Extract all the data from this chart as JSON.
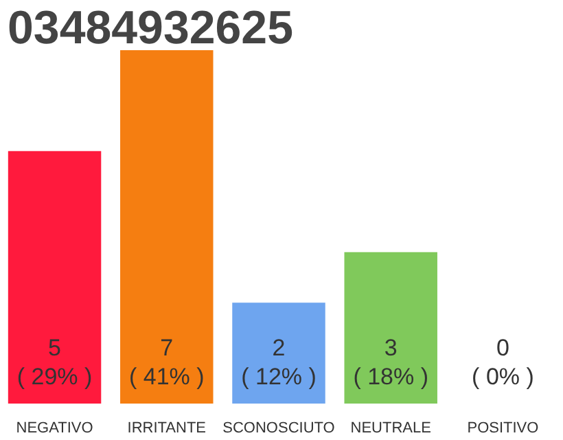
{
  "chart_data": {
    "type": "bar",
    "title": "03484932625",
    "categories": [
      "NEGATIVO",
      "IRRITANTE",
      "SCONOSCIUTO",
      "NEUTRALE",
      "POSITIVO"
    ],
    "values": [
      5,
      7,
      2,
      3,
      0
    ],
    "colors": [
      "#ff1a3d",
      "#f57e11",
      "#6ea5ef",
      "#80c95b",
      "#cccccc"
    ],
    "value_labels": [
      "5\n( 29% )",
      "7\n( 41% )",
      "2\n( 12% )",
      "3\n( 18% )",
      "0\n( 0% )"
    ],
    "grid": false,
    "legend": false
  }
}
